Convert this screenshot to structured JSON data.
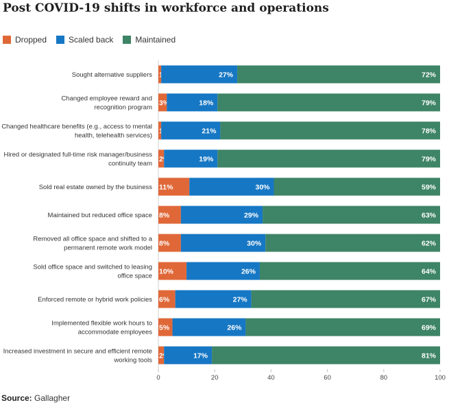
{
  "title": "Post COVID-19 shifts in workforce and operations",
  "source_label": "Source:",
  "source_value": "Gallagher",
  "colors": {
    "dropped": "#e06838",
    "scaled": "#1677c4",
    "maintained": "#3e8466"
  },
  "chart_data": {
    "type": "bar",
    "orientation": "horizontal",
    "stacked": true,
    "categories": [
      "Sought alternative suppliers",
      "Changed employee reward and|recognition program",
      "Changed healthcare benefits (e.g., access to mental|health, telehealth services)",
      "Hired or designated full-time risk manager/business|continuity team",
      "Sold real estate owned by the business",
      "Maintained but reduced office space",
      "Removed all office space and shifted to a|permanent remote work model",
      "Sold office space and switched to leasing|office space",
      "Enforced remote or hybrid work policies",
      "Implemented flexible work hours to|accommodate employees",
      "Increased investment in secure and efficient remote|working tools"
    ],
    "series": [
      {
        "name": "Dropped",
        "values": [
          1,
          3,
          1,
          2,
          11,
          8,
          8,
          10,
          6,
          5,
          2
        ]
      },
      {
        "name": "Scaled back",
        "values": [
          27,
          18,
          21,
          19,
          30,
          29,
          30,
          26,
          27,
          26,
          17
        ]
      },
      {
        "name": "Maintained",
        "values": [
          72,
          79,
          78,
          79,
          59,
          63,
          62,
          64,
          67,
          69,
          81
        ]
      }
    ],
    "xlim": [
      0,
      100
    ],
    "xticks": [
      0,
      20,
      40,
      60,
      80,
      100
    ],
    "value_suffix": "%",
    "legend": "top-left",
    "grid": false
  }
}
